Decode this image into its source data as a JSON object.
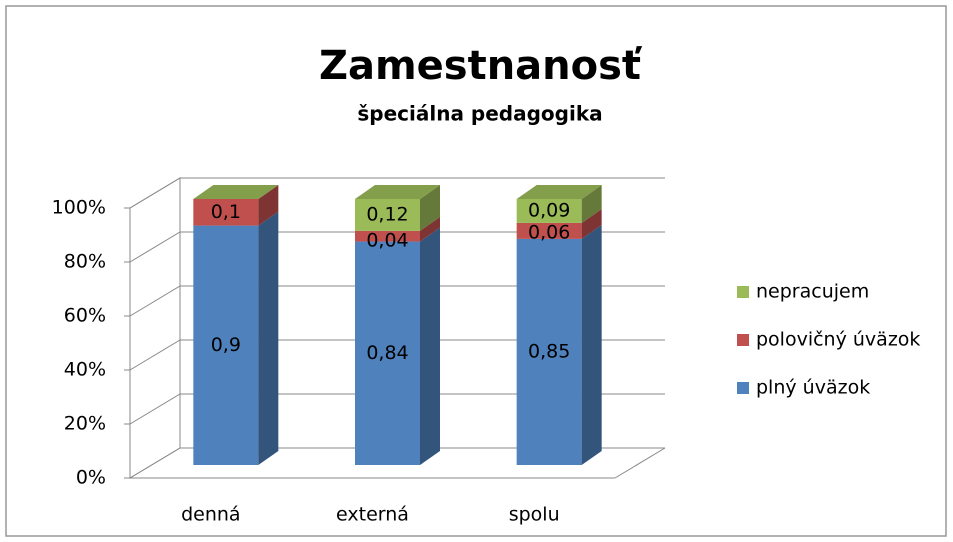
{
  "chart_data": {
    "type": "bar3d_stacked",
    "title": "Zamestnanosť",
    "subtitle": "špeciálna pedagogika",
    "categories": [
      "denná",
      "externá",
      "spolu"
    ],
    "series": [
      {
        "name": "plný úväzok",
        "color": "#4f81bd",
        "values": [
          0.9,
          0.84,
          0.85
        ],
        "value_labels": [
          "0,9",
          "0,84",
          "0,85"
        ]
      },
      {
        "name": "polovičný úväzok",
        "color": "#c0504d",
        "values": [
          0.1,
          0.04,
          0.06
        ],
        "value_labels": [
          "0,1",
          "0,04",
          "0,06"
        ]
      },
      {
        "name": "nepracujem",
        "color": "#9bbb59",
        "values": [
          0,
          0.12,
          0.09
        ],
        "value_labels": [
          null,
          "0,12",
          "0,09"
        ]
      }
    ],
    "ylim": [
      0,
      1
    ],
    "yticks": [
      {
        "value": 0,
        "label": "0%"
      },
      {
        "value": 0.2,
        "label": "20%"
      },
      {
        "value": 0.4,
        "label": "40%"
      },
      {
        "value": 0.6,
        "label": "60%"
      },
      {
        "value": 0.8,
        "label": "80%"
      },
      {
        "value": 1,
        "label": "100%"
      }
    ],
    "grid": true,
    "legend": "right"
  }
}
